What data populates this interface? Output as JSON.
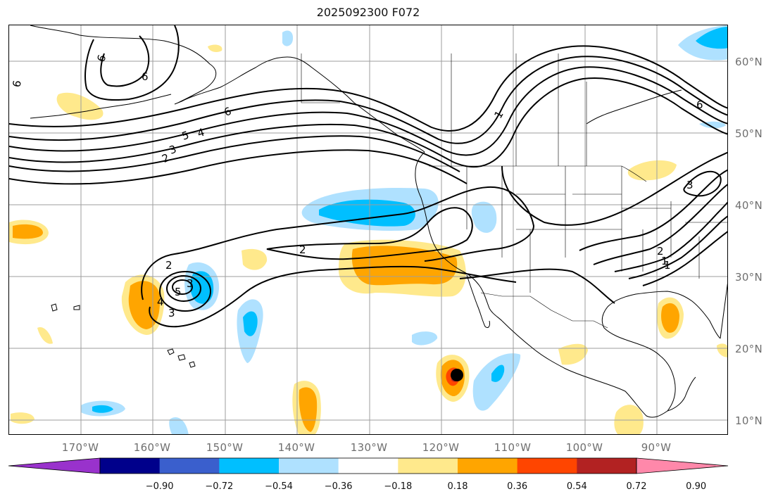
{
  "title": "2025092300 F072",
  "lat_labels": [
    "60°N",
    "50°N",
    "40°N",
    "30°N",
    "20°N",
    "10°N"
  ],
  "lon_labels": [
    "170°W",
    "160°W",
    "150°W",
    "140°W",
    "130°W",
    "120°W",
    "110°W",
    "100°W",
    "90°W"
  ],
  "colorbar": {
    "ticks": [
      "−0.90",
      "−0.72",
      "−0.54",
      "−0.36",
      "−0.18",
      "0.18",
      "0.36",
      "0.54",
      "0.72",
      "0.90"
    ],
    "colors": [
      "#9932cc",
      "#00008b",
      "#3a5fcd",
      "#00bfff",
      "#afe1ff",
      "#ffffff",
      "#ffe98c",
      "#ffa500",
      "#ff4500",
      "#b22222",
      "#ff88aa"
    ]
  },
  "contour_labels": [
    "6",
    "6",
    "6",
    "6",
    "4",
    "5",
    "3",
    "2",
    "1",
    "2",
    "2",
    "3",
    "4",
    "5",
    "3",
    "1",
    "3",
    "2",
    "1",
    "6"
  ],
  "map": {
    "projection": "cylindrical",
    "lon_range": [
      -180,
      -80
    ],
    "lat_range": [
      8,
      65
    ],
    "features": [
      "coastlines",
      "country borders",
      "US state borders",
      "Canadian province borders",
      "lat/lon gridlines"
    ],
    "colors": {
      "coastline": "#000000",
      "contour": "#000000",
      "gridline": "#9e9e9e",
      "tick_label": "#6f6f6f"
    }
  }
}
